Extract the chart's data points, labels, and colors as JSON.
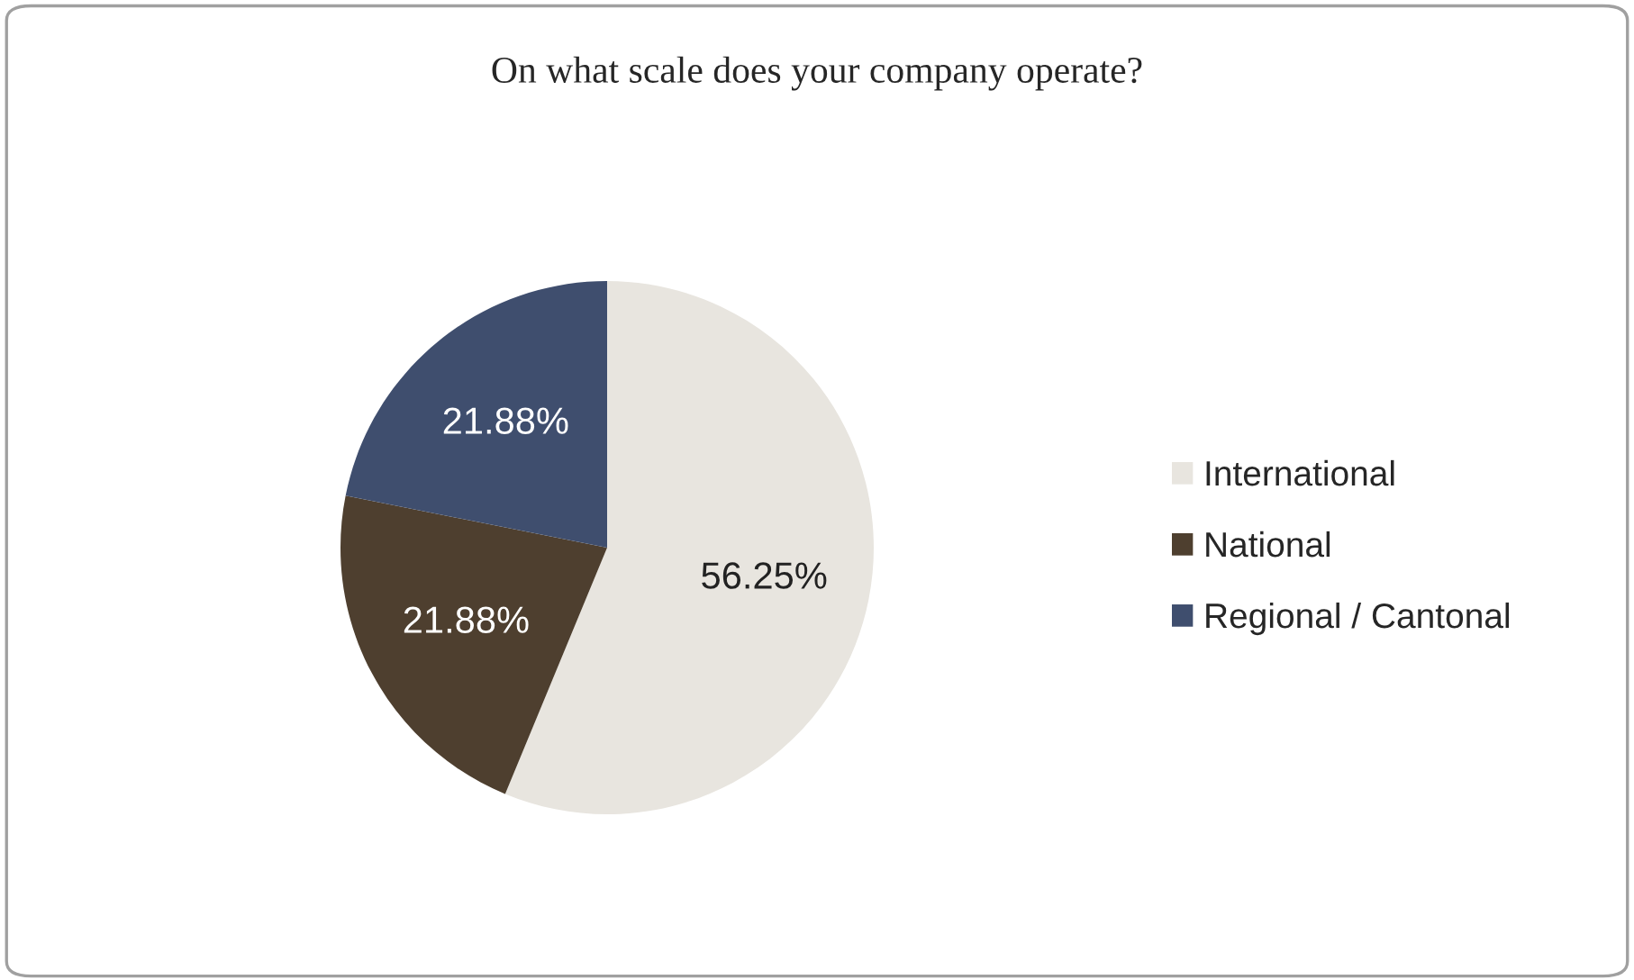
{
  "chart_data": {
    "type": "pie",
    "title": "On what scale does your company operate?",
    "categories": [
      "International",
      "National",
      "Regional / Cantonal"
    ],
    "values": [
      56.25,
      21.88,
      21.88
    ],
    "colors": [
      "#e8e5df",
      "#4e3f2f",
      "#3f4e6e"
    ],
    "value_labels": [
      "56.25%",
      "21.88%",
      "21.88%"
    ],
    "legend": "right"
  }
}
